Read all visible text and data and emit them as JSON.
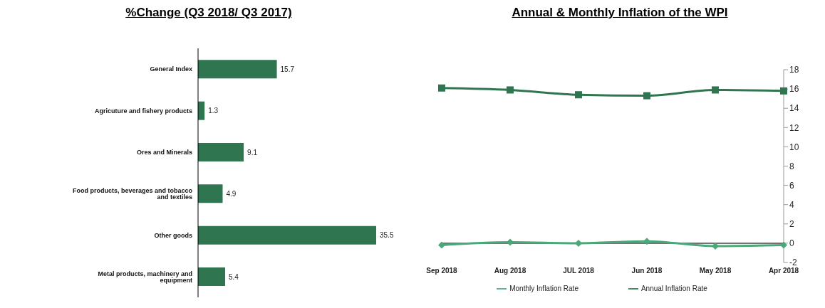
{
  "chart_data": [
    {
      "type": "bar",
      "title": "%Change (Q3 2018/ Q3 2017)",
      "orientation": "horizontal",
      "categories": [
        "General Index",
        "Agricuture and fishery products",
        "Ores and Minerals",
        "Food products, beverages and tobacco and textiles",
        "Other goods",
        "Metal products, machinery and equipment"
      ],
      "values": [
        15.7,
        1.3,
        9.1,
        4.9,
        35.5,
        5.4
      ],
      "color": "#2e7550",
      "data_labels": true,
      "tick_labels": "y"
    },
    {
      "type": "line",
      "title": "Annual & Monthly Inflation of the WPI",
      "categories": [
        "Sep  2018",
        "Aug  2018",
        "JUL 2018",
        "Jun  2018",
        "May  2018",
        "Apr 2018"
      ],
      "series": [
        {
          "name": "Monthly Inflation Rate",
          "color": "#4aa87a",
          "marker": "diamond",
          "values": [
            -0.2,
            0.1,
            0.0,
            0.2,
            -0.3,
            -0.2
          ]
        },
        {
          "name": "Annual Inflation Rate",
          "color": "#2e7550",
          "marker": "square",
          "values": [
            16.1,
            15.9,
            15.4,
            15.3,
            15.9,
            15.8
          ]
        }
      ],
      "ylim": [
        -2,
        18
      ],
      "yticks": [
        -2,
        0,
        2,
        4,
        6,
        8,
        10,
        12,
        14,
        16,
        18
      ],
      "legend": "bottom",
      "line_style": "solid"
    }
  ]
}
